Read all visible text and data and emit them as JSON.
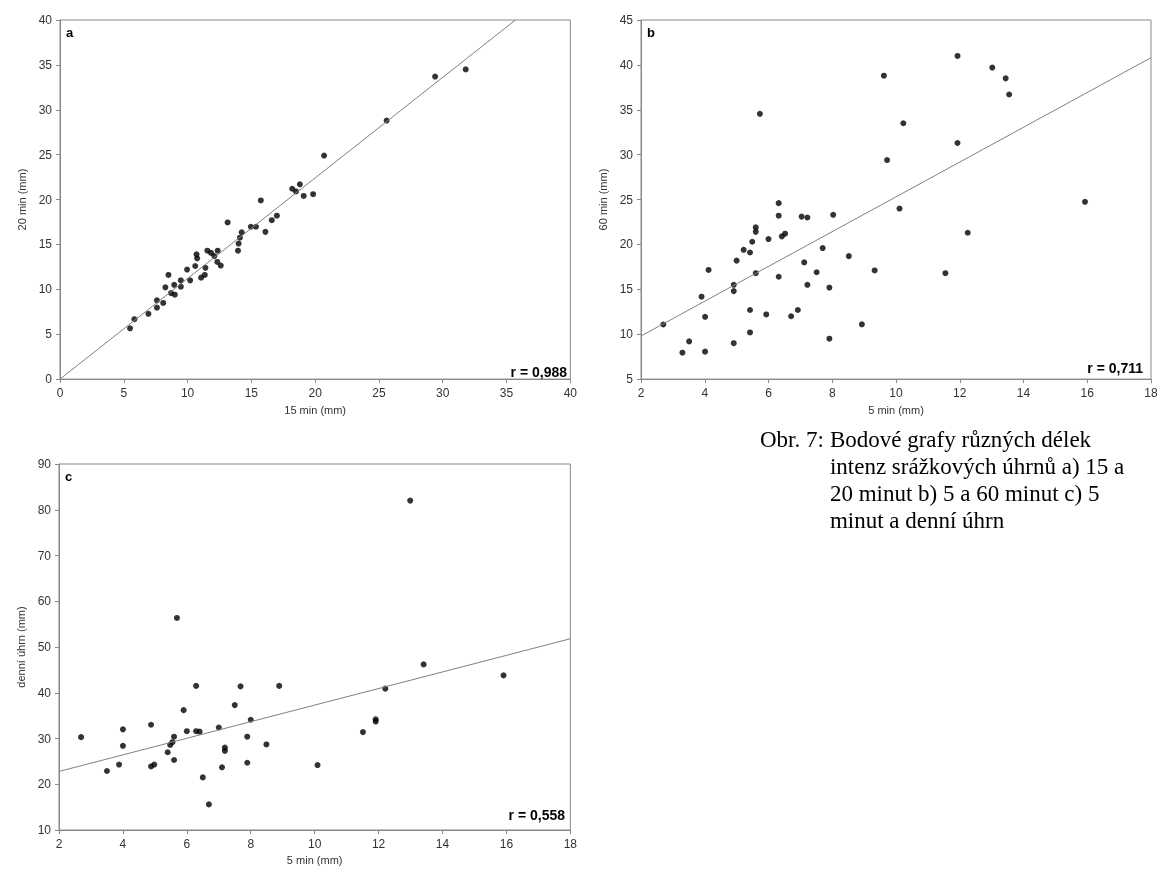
{
  "chart_data": [
    {
      "type": "scatter",
      "xlabel": "15 min (mm)",
      "ylabel": "20 min (mm)",
      "xlim": [
        0,
        40
      ],
      "ylim": [
        0,
        40
      ],
      "xticks": [
        0,
        5,
        10,
        15,
        20,
        25,
        30,
        35,
        40
      ],
      "yticks": [
        0,
        5,
        10,
        15,
        20,
        25,
        30,
        35,
        40
      ],
      "grid": false,
      "marker": "circle",
      "annotations": [
        "a",
        "r = 0,988"
      ],
      "series": [
        {
          "type": "scatter",
          "color": "#000000",
          "x": [
            5.49,
            5.83,
            6.93,
            7.6,
            7.6,
            8.09,
            8.26,
            8.5,
            8.7,
            8.95,
            9.0,
            9.47,
            9.47,
            9.96,
            10.2,
            10.6,
            10.7,
            10.75,
            11.06,
            11.35,
            11.4,
            11.55,
            11.84,
            12.1,
            12.36,
            12.33,
            12.6,
            13.14,
            13.95,
            14.0,
            14.1,
            14.24,
            14.96,
            15.36,
            15.74,
            16.1,
            16.6,
            17.0,
            18.2,
            18.5,
            18.8,
            19.1,
            19.84,
            20.7,
            25.6,
            29.4,
            31.8
          ],
          "values": [
            5.66,
            6.67,
            7.27,
            8.77,
            7.96,
            8.48,
            10.22,
            11.6,
            9.58,
            10.5,
            9.4,
            11.0,
            10.3,
            12.2,
            11.0,
            12.6,
            13.9,
            13.45,
            11.3,
            11.6,
            12.4,
            14.3,
            14.06,
            13.7,
            14.3,
            13.05,
            12.65,
            17.45,
            14.3,
            15.1,
            15.75,
            16.36,
            16.97,
            16.97,
            19.9,
            16.4,
            17.7,
            18.2,
            21.2,
            20.9,
            21.7,
            20.4,
            20.6,
            24.9,
            28.8,
            33.7,
            34.5
          ]
        },
        {
          "type": "line",
          "color": "#808080",
          "marker": "none",
          "x": [
            0,
            35.7
          ],
          "values": [
            0,
            40
          ]
        }
      ]
    },
    {
      "type": "scatter",
      "xlabel": "5 min (mm)",
      "ylabel": "60 min (mm)",
      "xlim": [
        2,
        18
      ],
      "ylim": [
        5,
        45
      ],
      "xticks": [
        2,
        4,
        6,
        8,
        10,
        12,
        14,
        16,
        18
      ],
      "yticks": [
        5,
        10,
        15,
        20,
        25,
        30,
        35,
        40,
        45
      ],
      "grid": false,
      "marker": "circle",
      "annotations": [
        "b",
        "r = 0,711"
      ],
      "series": [
        {
          "type": "scatter",
          "color": "#000000",
          "x": [
            2.7,
            3.3,
            3.51,
            3.9,
            4.01,
            4.01,
            4.12,
            4.91,
            4.91,
            4.91,
            5.0,
            5.22,
            5.42,
            5.42,
            5.42,
            5.49,
            5.6,
            5.6,
            5.6,
            5.73,
            5.93,
            6.0,
            6.32,
            6.32,
            6.32,
            6.42,
            6.52,
            6.71,
            6.92,
            7.04,
            7.12,
            7.22,
            7.22,
            7.51,
            7.7,
            7.91,
            7.91,
            8.03,
            8.52,
            8.93,
            9.33,
            9.62,
            9.72,
            10.11,
            10.23,
            11.55,
            11.93,
            11.93,
            12.25,
            13.02,
            13.44,
            13.55,
            15.93
          ],
          "values": [
            11.08,
            7.94,
            9.2,
            14.18,
            11.94,
            8.06,
            17.16,
            14.8,
            15.5,
            9.0,
            18.2,
            19.4,
            19.1,
            12.7,
            10.2,
            20.3,
            21.9,
            21.4,
            16.8,
            34.55,
            12.2,
            20.6,
            24.6,
            23.2,
            16.4,
            20.9,
            21.2,
            12.0,
            12.7,
            23.1,
            18.0,
            23.0,
            15.5,
            16.9,
            19.6,
            15.2,
            9.5,
            23.3,
            18.7,
            11.1,
            17.1,
            38.8,
            29.4,
            24.0,
            33.5,
            16.8,
            41.0,
            31.3,
            21.3,
            39.7,
            38.5,
            36.7,
            24.75
          ]
        },
        {
          "type": "line",
          "color": "#808080",
          "marker": "none",
          "x": [
            2,
            18
          ],
          "values": [
            9.8,
            40.8
          ]
        }
      ]
    },
    {
      "type": "scatter",
      "xlabel": "5 min (mm)",
      "ylabel": "denní úhrn (mm)",
      "xlim": [
        2,
        18
      ],
      "ylim": [
        10,
        90
      ],
      "xticks": [
        2,
        4,
        6,
        8,
        10,
        12,
        14,
        16,
        18
      ],
      "yticks": [
        10,
        20,
        30,
        40,
        50,
        60,
        70,
        80,
        90
      ],
      "grid": false,
      "marker": "circle",
      "annotations": [
        "c",
        "r = 0,558"
      ],
      "series": [
        {
          "type": "scatter",
          "color": "#000000",
          "x": [
            2.69,
            3.5,
            3.88,
            4.0,
            4.0,
            4.88,
            4.88,
            4.98,
            5.4,
            5.48,
            5.55,
            5.6,
            5.6,
            5.69,
            5.9,
            6.0,
            6.29,
            6.29,
            6.4,
            6.5,
            6.69,
            7.0,
            7.1,
            7.19,
            7.19,
            7.5,
            7.68,
            7.89,
            7.89,
            8.0,
            8.49,
            8.89,
            10.09,
            11.51,
            11.91,
            11.91,
            12.21,
            12.99,
            13.41,
            15.91
          ],
          "values": [
            30.3,
            22.9,
            24.3,
            32.0,
            28.4,
            33.0,
            23.9,
            24.3,
            27.0,
            28.6,
            29.2,
            30.4,
            25.3,
            56.35,
            36.2,
            31.6,
            41.5,
            31.6,
            31.5,
            21.5,
            15.6,
            32.4,
            23.7,
            28.0,
            27.3,
            37.3,
            41.4,
            30.4,
            24.7,
            34.1,
            28.7,
            41.5,
            24.2,
            31.4,
            34.2,
            33.7,
            40.9,
            82.0,
            46.2,
            43.8
          ]
        },
        {
          "type": "line",
          "color": "#808080",
          "marker": "none",
          "x": [
            2,
            18
          ],
          "values": [
            22.8,
            51.8
          ]
        }
      ]
    },
    {
      "type": "other",
      "annotations": [
        "Obr. 7:",
        "Bodové grafy různých délek intenz srážkových úhrnů a) 15 a 20 minut b) 5 a 60 minut c) 5 minut a denní úhrn"
      ]
    }
  ]
}
